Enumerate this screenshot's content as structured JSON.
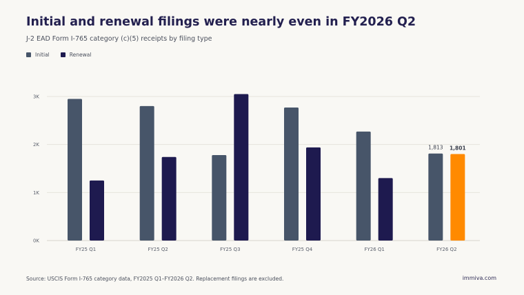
{
  "chart_data": {
    "type": "bar",
    "title": "Initial and renewal filings were nearly even in FY2026 Q2",
    "subtitle": "J-2 EAD Form I-765 category (c)(5) receipts by filing type",
    "categories": [
      "FY25 Q1",
      "FY25 Q2",
      "FY25 Q3",
      "FY25 Q4",
      "FY26 Q1",
      "FY26 Q2"
    ],
    "series": [
      {
        "name": "Initial",
        "color": "#475569",
        "values": [
          2950,
          2800,
          1780,
          2770,
          2270,
          1813
        ]
      },
      {
        "name": "Renewal",
        "color": "#1e1a4f",
        "values": [
          1250,
          1740,
          3050,
          1940,
          1300,
          1801
        ]
      }
    ],
    "highlight_color": "#ff8a00",
    "highlight": {
      "series": 1,
      "category": 5
    },
    "data_labels": [
      {
        "series": 0,
        "category": 5,
        "text": "1,813",
        "bold": false
      },
      {
        "series": 1,
        "category": 5,
        "text": "1,801",
        "bold": true
      }
    ],
    "yticks": [
      {
        "value": 0,
        "label": "0K"
      },
      {
        "value": 1000,
        "label": "1K"
      },
      {
        "value": 2000,
        "label": "2K"
      },
      {
        "value": 3000,
        "label": "3K"
      }
    ],
    "ylim": [
      0,
      3000
    ],
    "grid": true,
    "legend_position": "top-left",
    "xlabel": "",
    "ylabel": ""
  },
  "footer": {
    "source": "Source: USCIS Form I-765 category data, FY2025 Q1–FY2026 Q2. Replacement filings are excluded.",
    "brand": "immiva.com"
  }
}
